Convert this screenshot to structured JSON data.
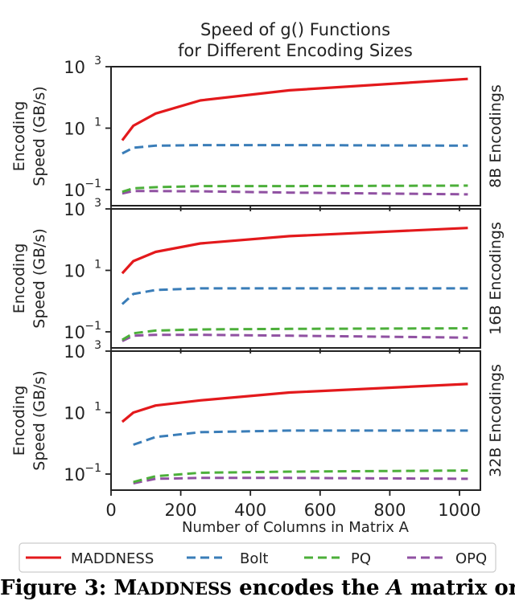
{
  "chart_data": {
    "type": "line",
    "title": "Speed of g() Functions",
    "subtitle": "for Different Encoding Sizes",
    "xlabel": "Number of Columns in Matrix A",
    "ylabel_line1": "Encoding",
    "ylabel_line2": "Speed (GB/s)",
    "y_scale": "log",
    "xlim": [
      0,
      1060
    ],
    "ylim": [
      0.03,
      1000
    ],
    "x_ticks": [
      0,
      200,
      400,
      600,
      800,
      1000
    ],
    "y_ticks": [
      {
        "value": 1000,
        "base": "10",
        "exp": "3"
      },
      {
        "value": 10,
        "base": "10",
        "exp": "1"
      },
      {
        "value": 0.1,
        "base": "10",
        "exp": "−1"
      }
    ],
    "legend_position": "bottom",
    "series_styles": [
      {
        "name": "MADDNESS",
        "color": "#e3191c",
        "dash": "solid"
      },
      {
        "name": "Bolt",
        "color": "#3a7db8",
        "dash": "dashed"
      },
      {
        "name": "PQ",
        "color": "#4caf3a",
        "dash": "dashed"
      },
      {
        "name": "OPQ",
        "color": "#9051a2",
        "dash": "dashed"
      }
    ],
    "panels": [
      {
        "label": "8B Encodings",
        "series": [
          {
            "name": "MADDNESS",
            "x": [
              32,
              64,
              128,
              256,
              512,
              1024
            ],
            "values": [
              4,
              12,
              30,
              80,
              170,
              400
            ]
          },
          {
            "name": "Bolt",
            "x": [
              32,
              64,
              128,
              256,
              512,
              1024
            ],
            "values": [
              1.5,
              2.3,
              2.7,
              2.8,
              2.8,
              2.7
            ]
          },
          {
            "name": "PQ",
            "x": [
              32,
              64,
              128,
              256,
              512,
              1024
            ],
            "values": [
              0.085,
              0.11,
              0.12,
              0.13,
              0.13,
              0.135
            ]
          },
          {
            "name": "OPQ",
            "x": [
              32,
              64,
              128,
              256,
              512,
              1024
            ],
            "values": [
              0.075,
              0.09,
              0.09,
              0.088,
              0.08,
              0.07
            ]
          }
        ]
      },
      {
        "label": "16B Encodings",
        "series": [
          {
            "name": "MADDNESS",
            "x": [
              32,
              64,
              128,
              256,
              512,
              1024
            ],
            "values": [
              8,
              20,
              40,
              75,
              130,
              240
            ]
          },
          {
            "name": "Bolt",
            "x": [
              32,
              64,
              128,
              256,
              512,
              1024
            ],
            "values": [
              0.8,
              1.7,
              2.3,
              2.6,
              2.6,
              2.6
            ]
          },
          {
            "name": "PQ",
            "x": [
              32,
              64,
              128,
              256,
              512,
              1024
            ],
            "values": [
              0.055,
              0.09,
              0.11,
              0.12,
              0.125,
              0.13
            ]
          },
          {
            "name": "OPQ",
            "x": [
              32,
              64,
              128,
              256,
              512,
              1024
            ],
            "values": [
              0.05,
              0.075,
              0.08,
              0.08,
              0.075,
              0.065
            ]
          }
        ]
      },
      {
        "label": "32B Encodings",
        "series": [
          {
            "name": "MADDNESS",
            "x": [
              32,
              64,
              128,
              256,
              512,
              1024
            ],
            "values": [
              5,
              10,
              17,
              25,
              45,
              85
            ]
          },
          {
            "name": "Bolt",
            "x": [
              64,
              128,
              256,
              512,
              1024
            ],
            "values": [
              0.9,
              1.6,
              2.3,
              2.6,
              2.6
            ]
          },
          {
            "name": "PQ",
            "x": [
              64,
              128,
              256,
              512,
              1024
            ],
            "values": [
              0.055,
              0.085,
              0.11,
              0.12,
              0.13
            ]
          },
          {
            "name": "OPQ",
            "x": [
              64,
              128,
              256,
              512,
              1024
            ],
            "values": [
              0.05,
              0.07,
              0.075,
              0.075,
              0.07
            ]
          }
        ]
      }
    ]
  },
  "caption": {
    "prefix": "Figure 3: M",
    "smallcaps": "ADDNESS",
    "middle": " encodes the ",
    "italic": "A",
    "suffix": " matrix orders of"
  }
}
